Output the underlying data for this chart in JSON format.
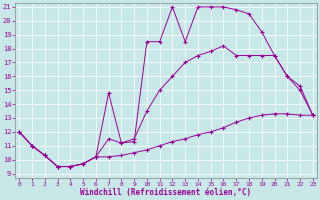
{
  "background_color": "#c8e8e8",
  "line_color": "#990099",
  "xlim": [
    0,
    23
  ],
  "ylim": [
    9,
    21
  ],
  "xticks": [
    0,
    1,
    2,
    3,
    4,
    5,
    6,
    7,
    8,
    9,
    10,
    11,
    12,
    13,
    14,
    15,
    16,
    17,
    18,
    19,
    20,
    21,
    22,
    23
  ],
  "yticks": [
    9,
    10,
    11,
    12,
    13,
    14,
    15,
    16,
    17,
    18,
    19,
    20,
    21
  ],
  "xlabel": "Windchill (Refroidissement éolien,°C)",
  "line_bottom": {
    "x": [
      0,
      1,
      2,
      3,
      4,
      5,
      6,
      7,
      8,
      9,
      10,
      11,
      12,
      13,
      14,
      15,
      16,
      17,
      18,
      19,
      20,
      21,
      22,
      23
    ],
    "y": [
      12,
      11,
      10.3,
      9.5,
      9.5,
      9.7,
      10.2,
      10.2,
      10.3,
      10.5,
      10.7,
      11.0,
      11.3,
      11.5,
      11.8,
      12.0,
      12.3,
      12.7,
      13.0,
      13.2,
      13.3,
      13.3,
      13.2,
      13.2
    ]
  },
  "line_mid": {
    "x": [
      0,
      1,
      2,
      3,
      4,
      5,
      6,
      7,
      8,
      9,
      10,
      11,
      12,
      13,
      14,
      15,
      16,
      17,
      18,
      19,
      20,
      21,
      22,
      23
    ],
    "y": [
      12,
      11,
      10.3,
      9.5,
      9.5,
      9.7,
      10.2,
      11.5,
      11.2,
      11.5,
      13.5,
      15.0,
      16.0,
      17.0,
      17.5,
      17.8,
      18.2,
      17.5,
      17.5,
      17.5,
      17.5,
      16.0,
      15.0,
      13.2
    ]
  },
  "line_top": {
    "x": [
      0,
      1,
      2,
      3,
      4,
      5,
      6,
      7,
      8,
      9,
      10,
      11,
      12,
      13,
      14,
      15,
      16,
      17,
      18,
      19,
      20,
      21,
      22,
      23
    ],
    "y": [
      12,
      11,
      10.3,
      9.5,
      9.5,
      9.7,
      10.2,
      14.8,
      11.2,
      11.3,
      18.5,
      18.5,
      21.0,
      18.5,
      21.0,
      21.0,
      21.0,
      20.8,
      20.5,
      19.2,
      17.5,
      16.0,
      15.3,
      13.2
    ]
  }
}
